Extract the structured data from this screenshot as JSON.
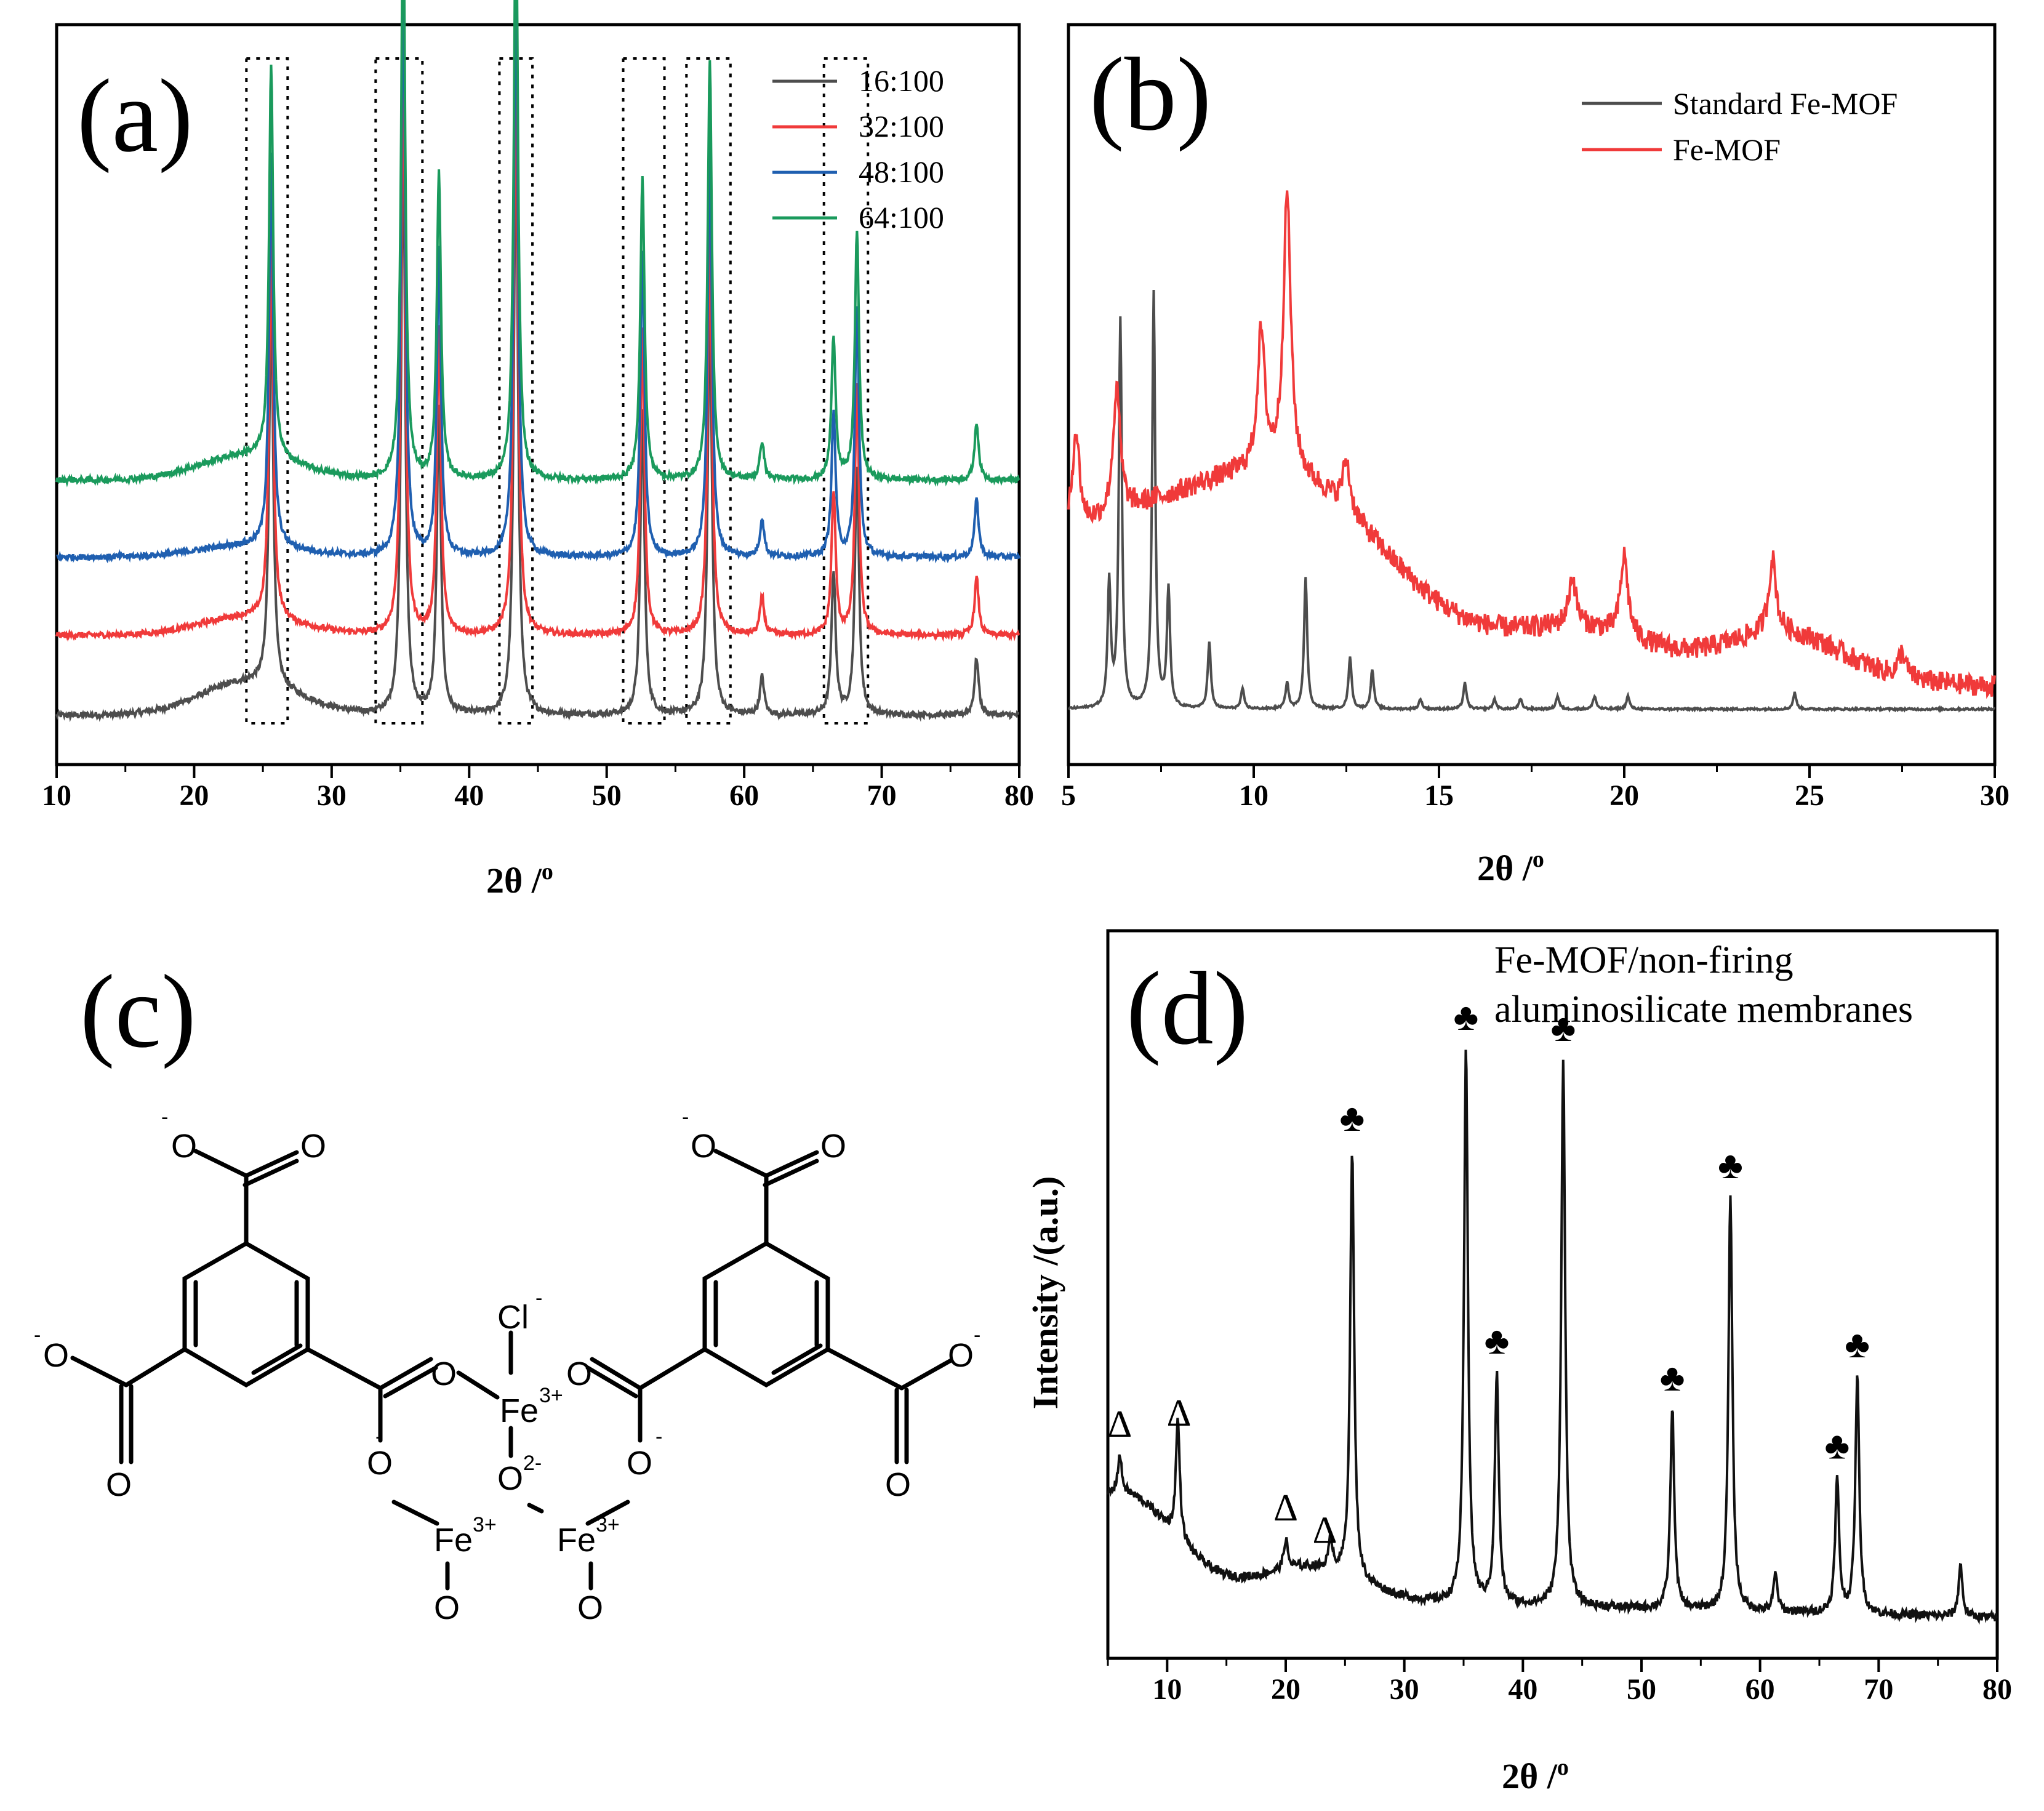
{
  "colors": {
    "s16": "#4d4d4d",
    "s32": "#f03a3a",
    "s48": "#1f5fb0",
    "s64": "#1a9a5c",
    "std": "#4d4d4d",
    "fe": "#f03a3a",
    "d": "#111111"
  },
  "chart_data": [
    {
      "panel": "a",
      "type": "line",
      "label": "(a)",
      "xlabel": "2θ /",
      "xlabel_sup": "o",
      "ylabel": "",
      "xlim": [
        10,
        80
      ],
      "xticks": [
        10,
        20,
        30,
        40,
        50,
        60,
        70,
        80
      ],
      "legend": [
        "16:100",
        "32:100",
        "48:100",
        "64:100"
      ],
      "series": [
        {
          "name": "16:100",
          "offset": 0,
          "hump": 1.0,
          "scale": 1.0
        },
        {
          "name": "32:100",
          "offset": 1,
          "hump": 0.55,
          "scale": 1.0
        },
        {
          "name": "48:100",
          "offset": 2,
          "hump": 0.35,
          "scale": 1.0
        },
        {
          "name": "64:100",
          "offset": 3,
          "hump": 0.75,
          "scale": 1.0
        }
      ],
      "peaks": [
        {
          "x": 25.6,
          "h": 4.1
        },
        {
          "x": 35.2,
          "h": 6.1
        },
        {
          "x": 37.8,
          "h": 3.2
        },
        {
          "x": 43.4,
          "h": 6.2
        },
        {
          "x": 52.6,
          "h": 3.2
        },
        {
          "x": 57.5,
          "h": 4.4
        },
        {
          "x": 61.3,
          "h": 0.4
        },
        {
          "x": 66.5,
          "h": 1.5
        },
        {
          "x": 68.2,
          "h": 2.6
        },
        {
          "x": 76.9,
          "h": 0.6
        }
      ],
      "boxed_regions": [
        [
          23.8,
          26.8
        ],
        [
          33.2,
          36.6
        ],
        [
          42.2,
          44.6
        ],
        [
          51.2,
          54.2
        ],
        [
          55.8,
          59.0
        ],
        [
          65.8,
          69.0
        ]
      ]
    },
    {
      "panel": "b",
      "type": "line",
      "label": "(b)",
      "xlabel": "2θ /",
      "xlabel_sup": "o",
      "ylabel": "",
      "xlim": [
        5,
        30
      ],
      "xticks": [
        5,
        10,
        15,
        20,
        25,
        30
      ],
      "legend": [
        "Standard Fe-MOF",
        "Fe-MOF"
      ],
      "series": [
        {
          "name": "Standard Fe-MOF",
          "peaks": [
            {
              "x": 6.1,
              "h": 1.9
            },
            {
              "x": 6.4,
              "h": 5.9
            },
            {
              "x": 7.3,
              "h": 6.3
            },
            {
              "x": 7.7,
              "h": 1.8
            },
            {
              "x": 8.8,
              "h": 1.0
            },
            {
              "x": 9.7,
              "h": 0.3
            },
            {
              "x": 10.9,
              "h": 0.4
            },
            {
              "x": 11.4,
              "h": 2.0
            },
            {
              "x": 12.6,
              "h": 0.8
            },
            {
              "x": 13.2,
              "h": 0.6
            },
            {
              "x": 14.5,
              "h": 0.15
            },
            {
              "x": 15.7,
              "h": 0.4
            },
            {
              "x": 16.5,
              "h": 0.15
            },
            {
              "x": 17.2,
              "h": 0.15
            },
            {
              "x": 18.2,
              "h": 0.2
            },
            {
              "x": 19.2,
              "h": 0.2
            },
            {
              "x": 20.1,
              "h": 0.2
            },
            {
              "x": 24.6,
              "h": 0.25
            }
          ]
        },
        {
          "name": "Fe-MOF",
          "peaks": [
            {
              "x": 5.2,
              "h": 1.6
            },
            {
              "x": 6.3,
              "h": 2.0
            },
            {
              "x": 10.2,
              "h": 2.2
            },
            {
              "x": 10.9,
              "h": 4.5
            },
            {
              "x": 12.5,
              "h": 0.8
            },
            {
              "x": 18.6,
              "h": 0.8
            },
            {
              "x": 20.0,
              "h": 1.3
            },
            {
              "x": 24.0,
              "h": 1.2
            },
            {
              "x": 27.5,
              "h": 0.4
            }
          ]
        }
      ]
    },
    {
      "panel": "d",
      "type": "line",
      "label": "(d)",
      "title_line1": "Fe-MOF/non-firing",
      "title_line2": "aluminosilicate membranes",
      "xlabel": "2θ /",
      "xlabel_sup": "o",
      "ylabel": "Intensity /(a.u.)",
      "xlim": [
        5,
        80
      ],
      "xticks": [
        10,
        20,
        30,
        40,
        50,
        60,
        70,
        80
      ],
      "series": [
        {
          "name": "Fe-MOF/non-firing aluminosilicate membranes"
        }
      ],
      "peaks": [
        {
          "x": 6.0,
          "h": 0.5
        },
        {
          "x": 10.9,
          "h": 1.6
        },
        {
          "x": 20.0,
          "h": 0.4
        },
        {
          "x": 23.8,
          "h": 0.4
        },
        {
          "x": 25.6,
          "h": 5.8
        },
        {
          "x": 35.2,
          "h": 7.5
        },
        {
          "x": 37.8,
          "h": 3.1
        },
        {
          "x": 43.4,
          "h": 7.4
        },
        {
          "x": 52.6,
          "h": 2.7
        },
        {
          "x": 57.5,
          "h": 5.6
        },
        {
          "x": 61.3,
          "h": 0.5
        },
        {
          "x": 66.5,
          "h": 1.8
        },
        {
          "x": 68.2,
          "h": 3.2
        },
        {
          "x": 76.9,
          "h": 0.7
        }
      ],
      "markers": [
        {
          "x": 6.0,
          "symbol": "Δ"
        },
        {
          "x": 11.0,
          "symbol": "Δ"
        },
        {
          "x": 20.0,
          "symbol": "Δ"
        },
        {
          "x": 23.3,
          "symbol": "Δ"
        },
        {
          "x": 25.6,
          "symbol": "♣"
        },
        {
          "x": 35.2,
          "symbol": "♣"
        },
        {
          "x": 37.8,
          "symbol": "♣"
        },
        {
          "x": 43.4,
          "symbol": "♣"
        },
        {
          "x": 52.6,
          "symbol": "♣"
        },
        {
          "x": 57.5,
          "symbol": "♣"
        },
        {
          "x": 66.5,
          "symbol": "♣"
        },
        {
          "x": 68.2,
          "symbol": "♣"
        }
      ]
    }
  ],
  "panel_c": {
    "label": "(c)",
    "charges": {
      "minus": "-",
      "two_minus": "2-",
      "three_plus": "3+"
    },
    "atoms": {
      "O": "O",
      "Cl": "Cl",
      "Fe": "Fe"
    }
  }
}
